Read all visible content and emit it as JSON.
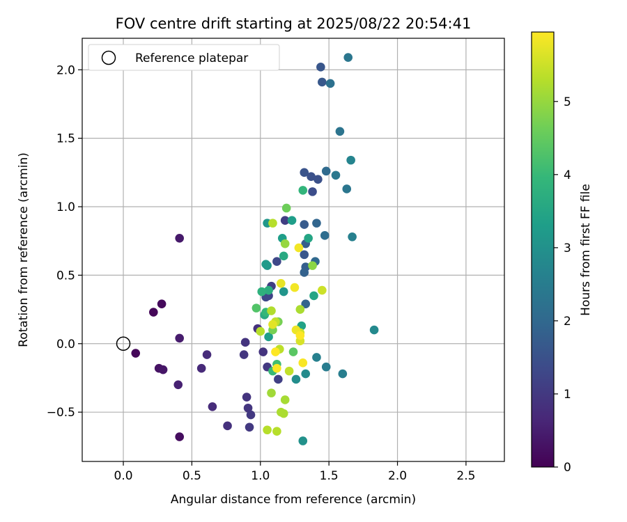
{
  "chart_data": {
    "type": "scatter",
    "title": "FOV centre drift starting at 2025/08/22 20:54:41",
    "xlabel": "Angular distance from reference (arcmin)",
    "ylabel": "Rotation from reference (arcmin)",
    "xlim": [
      -0.3,
      2.78
    ],
    "ylim": [
      -0.86,
      2.23
    ],
    "xticks": [
      {
        "v": 0.0,
        "label": "0.0"
      },
      {
        "v": 0.5,
        "label": "0.5"
      },
      {
        "v": 1.0,
        "label": "1.0"
      },
      {
        "v": 1.5,
        "label": "1.5"
      },
      {
        "v": 2.0,
        "label": "2.0"
      },
      {
        "v": 2.5,
        "label": "2.5"
      }
    ],
    "yticks": [
      {
        "v": -0.5,
        "label": "−0.5"
      },
      {
        "v": 0.0,
        "label": "0.0"
      },
      {
        "v": 0.5,
        "label": "0.5"
      },
      {
        "v": 1.0,
        "label": "1.0"
      },
      {
        "v": 1.5,
        "label": "1.5"
      },
      {
        "v": 2.0,
        "label": "2.0"
      }
    ],
    "grid": true,
    "legend": {
      "placement": "upper-left",
      "entries": [
        "Reference platepar"
      ]
    },
    "reference_point": {
      "x": 0.0,
      "y": 0.0
    },
    "colorbar": {
      "label": "Hours from first FF file",
      "min": 0,
      "max": 5.95,
      "ticks": [
        {
          "v": 0,
          "label": "0"
        },
        {
          "v": 1,
          "label": "1"
        },
        {
          "v": 2,
          "label": "2"
        },
        {
          "v": 3,
          "label": "3"
        },
        {
          "v": 4,
          "label": "4"
        },
        {
          "v": 5,
          "label": "5"
        }
      ],
      "colormap": "viridis",
      "stops": [
        "#440154",
        "#482878",
        "#3e4989",
        "#31688e",
        "#26828e",
        "#1f9e89",
        "#35b779",
        "#6ece58",
        "#b5de2b",
        "#fde725"
      ]
    },
    "points": [
      {
        "x": 0.09,
        "y": -0.07,
        "h": 0.1
      },
      {
        "x": 0.22,
        "y": 0.23,
        "h": 0.1
      },
      {
        "x": 0.28,
        "y": 0.29,
        "h": 0.15
      },
      {
        "x": 0.26,
        "y": -0.18,
        "h": 0.3
      },
      {
        "x": 0.29,
        "y": -0.19,
        "h": 0.35
      },
      {
        "x": 0.41,
        "y": 0.77,
        "h": 0.4
      },
      {
        "x": 0.41,
        "y": 0.04,
        "h": 0.45
      },
      {
        "x": 0.41,
        "y": -0.68,
        "h": 0.2
      },
      {
        "x": 0.4,
        "y": -0.3,
        "h": 0.55
      },
      {
        "x": 0.57,
        "y": -0.18,
        "h": 0.7
      },
      {
        "x": 0.61,
        "y": -0.08,
        "h": 0.75
      },
      {
        "x": 0.65,
        "y": -0.46,
        "h": 0.75
      },
      {
        "x": 0.76,
        "y": -0.6,
        "h": 0.85
      },
      {
        "x": 0.89,
        "y": 0.01,
        "h": 0.9
      },
      {
        "x": 0.88,
        "y": -0.08,
        "h": 0.95
      },
      {
        "x": 0.9,
        "y": -0.39,
        "h": 0.9
      },
      {
        "x": 0.91,
        "y": -0.47,
        "h": 0.95
      },
      {
        "x": 0.93,
        "y": -0.52,
        "h": 1.0
      },
      {
        "x": 0.92,
        "y": -0.61,
        "h": 1.0
      },
      {
        "x": 0.98,
        "y": 0.11,
        "h": 0.85
      },
      {
        "x": 1.02,
        "y": -0.06,
        "h": 0.9
      },
      {
        "x": 1.05,
        "y": -0.17,
        "h": 1.0
      },
      {
        "x": 1.08,
        "y": 0.42,
        "h": 1.1
      },
      {
        "x": 1.06,
        "y": 0.35,
        "h": 1.2
      },
      {
        "x": 1.04,
        "y": 0.34,
        "h": 1.3
      },
      {
        "x": 1.12,
        "y": 0.6,
        "h": 1.3
      },
      {
        "x": 1.18,
        "y": 0.9,
        "h": 1.1
      },
      {
        "x": 1.13,
        "y": -0.26,
        "h": 1.15
      },
      {
        "x": 1.38,
        "y": 1.11,
        "h": 1.4
      },
      {
        "x": 1.32,
        "y": 1.25,
        "h": 1.55
      },
      {
        "x": 1.37,
        "y": 1.22,
        "h": 1.5
      },
      {
        "x": 1.42,
        "y": 1.2,
        "h": 1.5
      },
      {
        "x": 1.44,
        "y": 2.02,
        "h": 1.6
      },
      {
        "x": 1.45,
        "y": 1.91,
        "h": 1.65
      },
      {
        "x": 1.32,
        "y": 0.87,
        "h": 1.7
      },
      {
        "x": 1.33,
        "y": 0.73,
        "h": 1.75
      },
      {
        "x": 1.32,
        "y": 0.65,
        "h": 1.6
      },
      {
        "x": 1.33,
        "y": 0.56,
        "h": 1.8
      },
      {
        "x": 1.32,
        "y": 0.52,
        "h": 1.85
      },
      {
        "x": 1.41,
        "y": 0.88,
        "h": 1.95
      },
      {
        "x": 1.4,
        "y": 0.6,
        "h": 2.0
      },
      {
        "x": 1.33,
        "y": 0.29,
        "h": 1.9
      },
      {
        "x": 1.48,
        "y": 1.26,
        "h": 2.05
      },
      {
        "x": 1.51,
        "y": 1.9,
        "h": 2.2
      },
      {
        "x": 1.47,
        "y": 0.79,
        "h": 2.1
      },
      {
        "x": 1.58,
        "y": 1.55,
        "h": 2.3
      },
      {
        "x": 1.64,
        "y": 2.09,
        "h": 2.35
      },
      {
        "x": 1.63,
        "y": 1.13,
        "h": 2.35
      },
      {
        "x": 1.55,
        "y": 1.23,
        "h": 2.4
      },
      {
        "x": 1.48,
        "y": -0.17,
        "h": 2.5
      },
      {
        "x": 1.41,
        "y": -0.1,
        "h": 2.6
      },
      {
        "x": 1.6,
        "y": -0.22,
        "h": 2.55
      },
      {
        "x": 1.66,
        "y": 1.34,
        "h": 2.7
      },
      {
        "x": 1.67,
        "y": 0.78,
        "h": 2.6
      },
      {
        "x": 1.83,
        "y": 0.1,
        "h": 2.8
      },
      {
        "x": 1.33,
        "y": -0.22,
        "h": 2.85
      },
      {
        "x": 1.26,
        "y": -0.26,
        "h": 2.9
      },
      {
        "x": 1.31,
        "y": -0.71,
        "h": 3.0
      },
      {
        "x": 1.05,
        "y": 0.57,
        "h": 3.1
      },
      {
        "x": 1.05,
        "y": 0.88,
        "h": 3.15
      },
      {
        "x": 1.17,
        "y": 0.38,
        "h": 3.1
      },
      {
        "x": 1.04,
        "y": 0.58,
        "h": 3.2
      },
      {
        "x": 1.06,
        "y": 0.05,
        "h": 3.3
      },
      {
        "x": 1.16,
        "y": 0.77,
        "h": 3.3
      },
      {
        "x": 1.23,
        "y": 0.9,
        "h": 3.3
      },
      {
        "x": 1.3,
        "y": 0.13,
        "h": 3.4
      },
      {
        "x": 1.35,
        "y": 0.77,
        "h": 3.5
      },
      {
        "x": 1.39,
        "y": 0.35,
        "h": 3.5
      },
      {
        "x": 1.17,
        "y": 0.64,
        "h": 3.6
      },
      {
        "x": 1.03,
        "y": 0.21,
        "h": 3.6
      },
      {
        "x": 1.06,
        "y": 0.39,
        "h": 3.7
      },
      {
        "x": 1.01,
        "y": 0.38,
        "h": 3.8
      },
      {
        "x": 1.31,
        "y": 1.12,
        "h": 3.9
      },
      {
        "x": 1.04,
        "y": 0.23,
        "h": 3.95
      },
      {
        "x": 1.09,
        "y": -0.2,
        "h": 4.0
      },
      {
        "x": 1.12,
        "y": -0.15,
        "h": 4.1
      },
      {
        "x": 0.97,
        "y": 0.26,
        "h": 4.3
      },
      {
        "x": 1.24,
        "y": -0.06,
        "h": 4.4
      },
      {
        "x": 1.19,
        "y": 0.99,
        "h": 4.6
      },
      {
        "x": 1.13,
        "y": 0.16,
        "h": 4.7
      },
      {
        "x": 1.09,
        "y": 0.1,
        "h": 4.7
      },
      {
        "x": 1.38,
        "y": 0.57,
        "h": 4.9
      },
      {
        "x": 1.18,
        "y": 0.73,
        "h": 5.0
      },
      {
        "x": 1.08,
        "y": -0.36,
        "h": 5.1
      },
      {
        "x": 1.18,
        "y": -0.41,
        "h": 5.15
      },
      {
        "x": 1.15,
        "y": -0.5,
        "h": 5.2
      },
      {
        "x": 1.17,
        "y": -0.51,
        "h": 5.2
      },
      {
        "x": 1.05,
        "y": -0.63,
        "h": 5.3
      },
      {
        "x": 1.12,
        "y": -0.64,
        "h": 5.3
      },
      {
        "x": 1.09,
        "y": 0.88,
        "h": 5.3
      },
      {
        "x": 1.08,
        "y": 0.24,
        "h": 5.25
      },
      {
        "x": 1.29,
        "y": 0.25,
        "h": 5.2
      },
      {
        "x": 1.0,
        "y": 0.09,
        "h": 5.3
      },
      {
        "x": 1.14,
        "y": -0.04,
        "h": 5.35
      },
      {
        "x": 1.11,
        "y": 0.16,
        "h": 5.4
      },
      {
        "x": 1.21,
        "y": -0.2,
        "h": 5.4
      },
      {
        "x": 1.29,
        "y": 0.08,
        "h": 5.5
      },
      {
        "x": 1.45,
        "y": 0.39,
        "h": 5.5
      },
      {
        "x": 1.29,
        "y": 0.02,
        "h": 5.6
      },
      {
        "x": 1.09,
        "y": 0.14,
        "h": 5.7
      },
      {
        "x": 1.15,
        "y": 0.44,
        "h": 5.75
      },
      {
        "x": 1.26,
        "y": 0.1,
        "h": 5.8
      },
      {
        "x": 1.25,
        "y": 0.41,
        "h": 5.85
      },
      {
        "x": 1.28,
        "y": 0.7,
        "h": 5.85
      },
      {
        "x": 1.12,
        "y": -0.18,
        "h": 5.9
      },
      {
        "x": 1.31,
        "y": -0.14,
        "h": 5.9
      },
      {
        "x": 1.11,
        "y": -0.06,
        "h": 5.95
      },
      {
        "x": 1.29,
        "y": 0.06,
        "h": 5.95
      }
    ]
  }
}
